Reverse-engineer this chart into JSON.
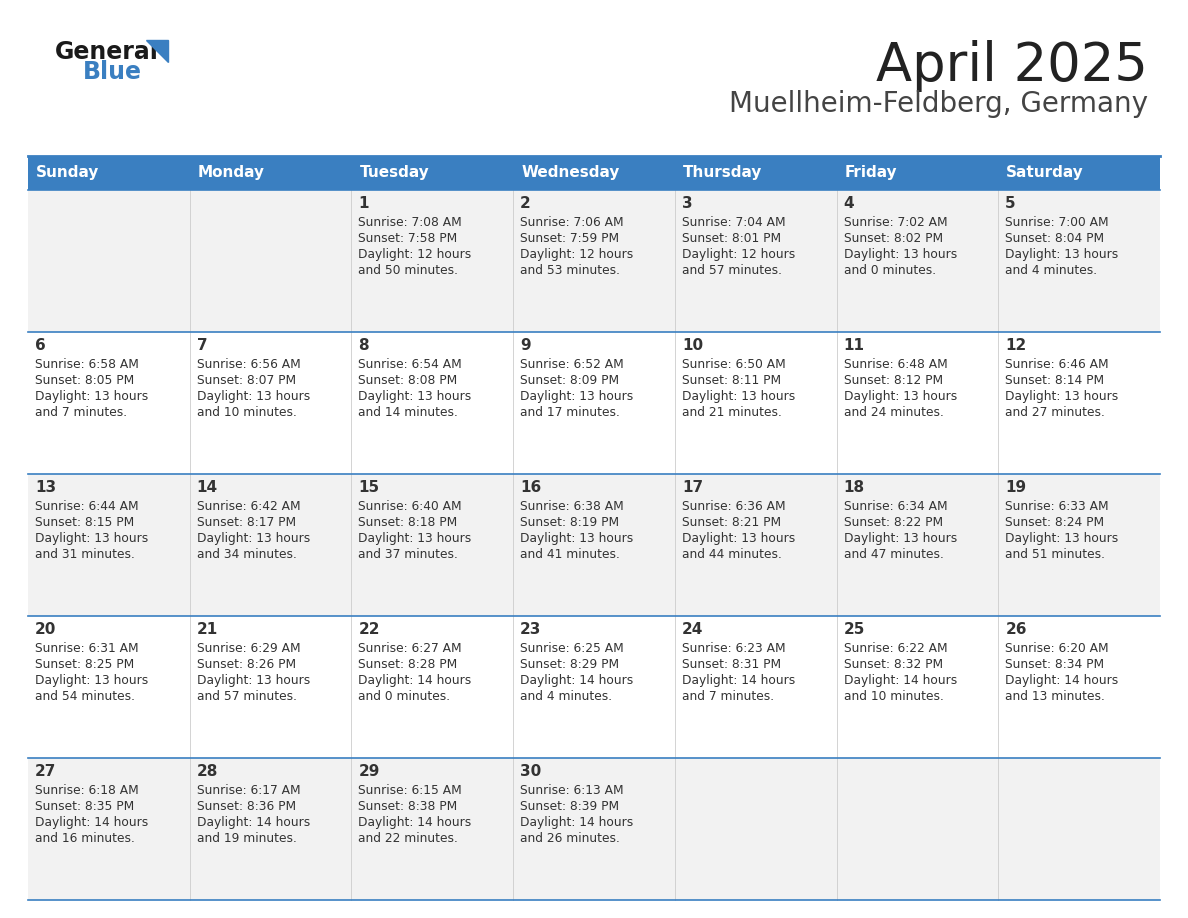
{
  "title": "April 2025",
  "subtitle": "Muellheim-Feldberg, Germany",
  "header_bg": "#3a7fc1",
  "header_text": "#ffffff",
  "row_bg_odd": "#f2f2f2",
  "row_bg_even": "#ffffff",
  "separator_color": "#3a7fc1",
  "text_color": "#333333",
  "days_of_week": [
    "Sunday",
    "Monday",
    "Tuesday",
    "Wednesday",
    "Thursday",
    "Friday",
    "Saturday"
  ],
  "calendar": [
    [
      {
        "day": "",
        "sunrise": "",
        "sunset": "",
        "daylight": ""
      },
      {
        "day": "",
        "sunrise": "",
        "sunset": "",
        "daylight": ""
      },
      {
        "day": "1",
        "sunrise": "Sunrise: 7:08 AM",
        "sunset": "Sunset: 7:58 PM",
        "daylight": "Daylight: 12 hours\nand 50 minutes."
      },
      {
        "day": "2",
        "sunrise": "Sunrise: 7:06 AM",
        "sunset": "Sunset: 7:59 PM",
        "daylight": "Daylight: 12 hours\nand 53 minutes."
      },
      {
        "day": "3",
        "sunrise": "Sunrise: 7:04 AM",
        "sunset": "Sunset: 8:01 PM",
        "daylight": "Daylight: 12 hours\nand 57 minutes."
      },
      {
        "day": "4",
        "sunrise": "Sunrise: 7:02 AM",
        "sunset": "Sunset: 8:02 PM",
        "daylight": "Daylight: 13 hours\nand 0 minutes."
      },
      {
        "day": "5",
        "sunrise": "Sunrise: 7:00 AM",
        "sunset": "Sunset: 8:04 PM",
        "daylight": "Daylight: 13 hours\nand 4 minutes."
      }
    ],
    [
      {
        "day": "6",
        "sunrise": "Sunrise: 6:58 AM",
        "sunset": "Sunset: 8:05 PM",
        "daylight": "Daylight: 13 hours\nand 7 minutes."
      },
      {
        "day": "7",
        "sunrise": "Sunrise: 6:56 AM",
        "sunset": "Sunset: 8:07 PM",
        "daylight": "Daylight: 13 hours\nand 10 minutes."
      },
      {
        "day": "8",
        "sunrise": "Sunrise: 6:54 AM",
        "sunset": "Sunset: 8:08 PM",
        "daylight": "Daylight: 13 hours\nand 14 minutes."
      },
      {
        "day": "9",
        "sunrise": "Sunrise: 6:52 AM",
        "sunset": "Sunset: 8:09 PM",
        "daylight": "Daylight: 13 hours\nand 17 minutes."
      },
      {
        "day": "10",
        "sunrise": "Sunrise: 6:50 AM",
        "sunset": "Sunset: 8:11 PM",
        "daylight": "Daylight: 13 hours\nand 21 minutes."
      },
      {
        "day": "11",
        "sunrise": "Sunrise: 6:48 AM",
        "sunset": "Sunset: 8:12 PM",
        "daylight": "Daylight: 13 hours\nand 24 minutes."
      },
      {
        "day": "12",
        "sunrise": "Sunrise: 6:46 AM",
        "sunset": "Sunset: 8:14 PM",
        "daylight": "Daylight: 13 hours\nand 27 minutes."
      }
    ],
    [
      {
        "day": "13",
        "sunrise": "Sunrise: 6:44 AM",
        "sunset": "Sunset: 8:15 PM",
        "daylight": "Daylight: 13 hours\nand 31 minutes."
      },
      {
        "day": "14",
        "sunrise": "Sunrise: 6:42 AM",
        "sunset": "Sunset: 8:17 PM",
        "daylight": "Daylight: 13 hours\nand 34 minutes."
      },
      {
        "day": "15",
        "sunrise": "Sunrise: 6:40 AM",
        "sunset": "Sunset: 8:18 PM",
        "daylight": "Daylight: 13 hours\nand 37 minutes."
      },
      {
        "day": "16",
        "sunrise": "Sunrise: 6:38 AM",
        "sunset": "Sunset: 8:19 PM",
        "daylight": "Daylight: 13 hours\nand 41 minutes."
      },
      {
        "day": "17",
        "sunrise": "Sunrise: 6:36 AM",
        "sunset": "Sunset: 8:21 PM",
        "daylight": "Daylight: 13 hours\nand 44 minutes."
      },
      {
        "day": "18",
        "sunrise": "Sunrise: 6:34 AM",
        "sunset": "Sunset: 8:22 PM",
        "daylight": "Daylight: 13 hours\nand 47 minutes."
      },
      {
        "day": "19",
        "sunrise": "Sunrise: 6:33 AM",
        "sunset": "Sunset: 8:24 PM",
        "daylight": "Daylight: 13 hours\nand 51 minutes."
      }
    ],
    [
      {
        "day": "20",
        "sunrise": "Sunrise: 6:31 AM",
        "sunset": "Sunset: 8:25 PM",
        "daylight": "Daylight: 13 hours\nand 54 minutes."
      },
      {
        "day": "21",
        "sunrise": "Sunrise: 6:29 AM",
        "sunset": "Sunset: 8:26 PM",
        "daylight": "Daylight: 13 hours\nand 57 minutes."
      },
      {
        "day": "22",
        "sunrise": "Sunrise: 6:27 AM",
        "sunset": "Sunset: 8:28 PM",
        "daylight": "Daylight: 14 hours\nand 0 minutes."
      },
      {
        "day": "23",
        "sunrise": "Sunrise: 6:25 AM",
        "sunset": "Sunset: 8:29 PM",
        "daylight": "Daylight: 14 hours\nand 4 minutes."
      },
      {
        "day": "24",
        "sunrise": "Sunrise: 6:23 AM",
        "sunset": "Sunset: 8:31 PM",
        "daylight": "Daylight: 14 hours\nand 7 minutes."
      },
      {
        "day": "25",
        "sunrise": "Sunrise: 6:22 AM",
        "sunset": "Sunset: 8:32 PM",
        "daylight": "Daylight: 14 hours\nand 10 minutes."
      },
      {
        "day": "26",
        "sunrise": "Sunrise: 6:20 AM",
        "sunset": "Sunset: 8:34 PM",
        "daylight": "Daylight: 14 hours\nand 13 minutes."
      }
    ],
    [
      {
        "day": "27",
        "sunrise": "Sunrise: 6:18 AM",
        "sunset": "Sunset: 8:35 PM",
        "daylight": "Daylight: 14 hours\nand 16 minutes."
      },
      {
        "day": "28",
        "sunrise": "Sunrise: 6:17 AM",
        "sunset": "Sunset: 8:36 PM",
        "daylight": "Daylight: 14 hours\nand 19 minutes."
      },
      {
        "day": "29",
        "sunrise": "Sunrise: 6:15 AM",
        "sunset": "Sunset: 8:38 PM",
        "daylight": "Daylight: 14 hours\nand 22 minutes."
      },
      {
        "day": "30",
        "sunrise": "Sunrise: 6:13 AM",
        "sunset": "Sunset: 8:39 PM",
        "daylight": "Daylight: 14 hours\nand 26 minutes."
      },
      {
        "day": "",
        "sunrise": "",
        "sunset": "",
        "daylight": ""
      },
      {
        "day": "",
        "sunrise": "",
        "sunset": "",
        "daylight": ""
      },
      {
        "day": "",
        "sunrise": "",
        "sunset": "",
        "daylight": ""
      }
    ]
  ]
}
